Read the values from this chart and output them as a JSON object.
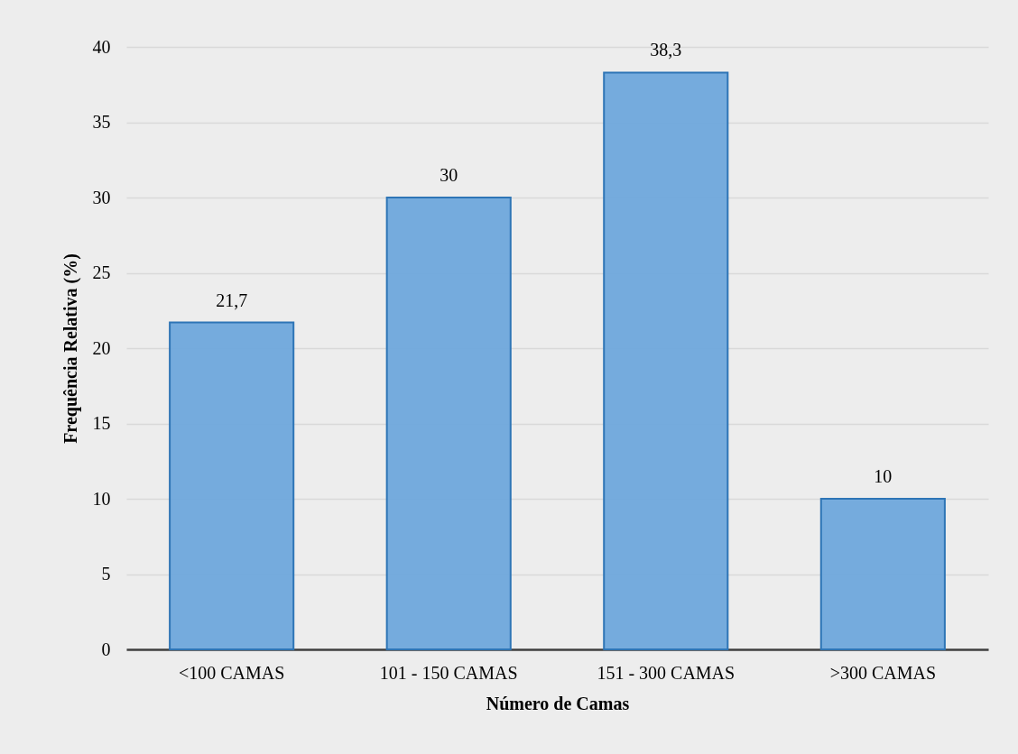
{
  "chart_data": {
    "type": "bar",
    "xlabel": "Número de Camas",
    "ylabel": "Frequência Relativa (%)",
    "categories": [
      "<100 CAMAS",
      "101 - 150 CAMAS",
      "151 - 300 CAMAS",
      ">300 CAMAS"
    ],
    "values": [
      21.7,
      30,
      38.3,
      10
    ],
    "value_labels": [
      "21,7",
      "30",
      "38,3",
      "10"
    ],
    "color": "#6fa8dc",
    "ylim": [
      0,
      40
    ],
    "yticks": [
      0,
      5,
      10,
      15,
      20,
      25,
      30,
      35,
      40
    ],
    "grid": "y"
  }
}
